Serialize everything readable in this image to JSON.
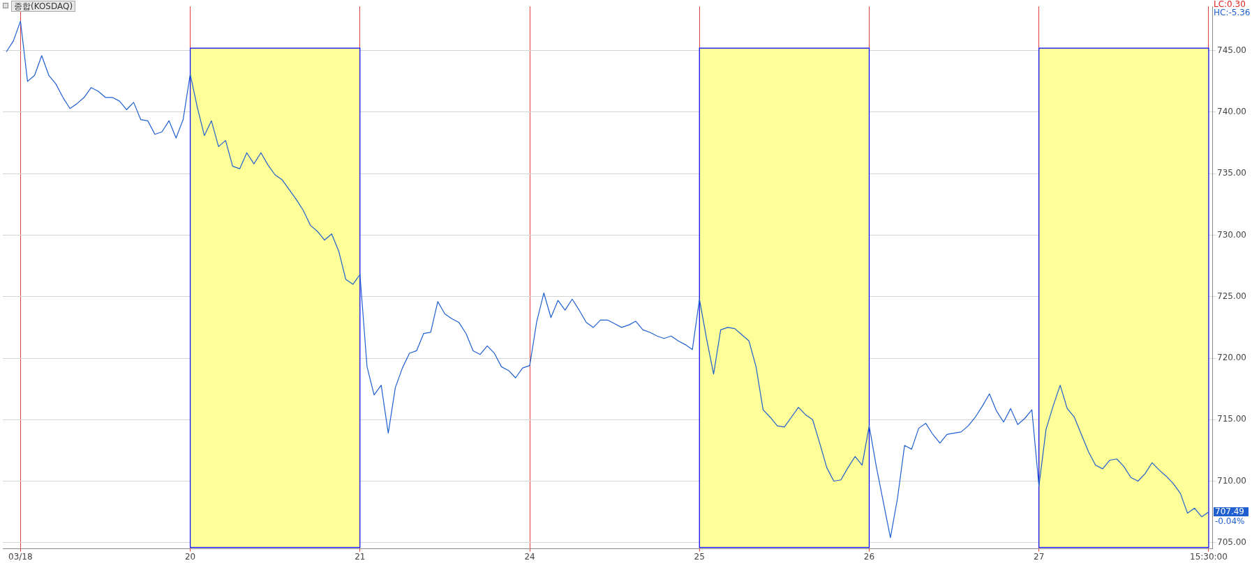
{
  "chart_data": {
    "type": "line",
    "title": "종합(KOSDAQ)",
    "categories": [
      null,
      null,
      "03/18",
      null,
      null,
      null,
      null,
      null,
      null,
      null,
      null,
      null,
      null,
      null,
      null,
      null,
      null,
      null,
      null,
      null,
      null,
      null,
      null,
      null,
      null,
      null,
      "20",
      null,
      null,
      null,
      null,
      null,
      null,
      null,
      null,
      null,
      null,
      null,
      null,
      null,
      null,
      null,
      null,
      null,
      null,
      null,
      null,
      null,
      null,
      null,
      "21",
      null,
      null,
      null,
      null,
      null,
      null,
      null,
      null,
      null,
      null,
      null,
      null,
      null,
      null,
      null,
      null,
      null,
      null,
      null,
      null,
      null,
      null,
      null,
      "24",
      null,
      null,
      null,
      null,
      null,
      null,
      null,
      null,
      null,
      null,
      null,
      null,
      null,
      null,
      null,
      null,
      null,
      null,
      null,
      null,
      null,
      null,
      null,
      "25",
      null,
      null,
      null,
      null,
      null,
      null,
      null,
      null,
      null,
      null,
      null,
      null,
      null,
      null,
      null,
      null,
      null,
      null,
      null,
      null,
      null,
      null,
      null,
      "26",
      null,
      null,
      null,
      null,
      null,
      null,
      null,
      null,
      null,
      null,
      null,
      null,
      null,
      null,
      null,
      null,
      null,
      null,
      null,
      null,
      null,
      null,
      null,
      "27",
      null,
      null,
      null,
      null,
      null,
      null,
      null,
      null,
      null,
      null,
      null,
      null,
      null,
      null,
      null,
      null,
      null,
      null,
      null,
      null,
      null,
      null,
      null,
      "15:30:00"
    ],
    "series": [
      {
        "values": [
          744.9,
          745.8,
          747.4,
          742.5,
          743.0,
          744.6,
          743.0,
          742.3,
          741.2,
          740.3,
          740.7,
          741.2,
          742.0,
          741.7,
          741.2,
          741.2,
          740.9,
          740.2,
          740.8,
          739.4,
          739.3,
          738.2,
          738.4,
          739.3,
          737.9,
          739.4,
          743.1,
          740.4,
          738.1,
          739.3,
          737.2,
          737.7,
          735.6,
          735.4,
          736.7,
          735.8,
          736.7,
          735.7,
          734.9,
          734.5,
          733.7,
          732.9,
          732.0,
          730.8,
          730.3,
          729.6,
          730.1,
          728.7,
          726.4,
          726.0,
          726.8,
          719.3,
          717.0,
          717.8,
          713.9,
          717.6,
          719.2,
          720.4,
          720.6,
          722.0,
          722.1,
          724.6,
          723.6,
          723.2,
          722.9,
          722.0,
          720.6,
          720.3,
          721.0,
          720.4,
          719.3,
          719.0,
          718.4,
          719.2,
          719.4,
          723.0,
          725.3,
          723.3,
          724.7,
          723.9,
          724.8,
          723.9,
          722.9,
          722.5,
          723.1,
          723.1,
          722.8,
          722.5,
          722.7,
          723.0,
          722.3,
          722.1,
          721.8,
          721.6,
          721.8,
          721.4,
          721.1,
          720.7,
          724.8,
          721.6,
          718.7,
          722.3,
          722.5,
          722.4,
          721.9,
          721.4,
          719.3,
          715.8,
          715.2,
          714.5,
          714.4,
          715.2,
          716.0,
          715.4,
          715.0,
          713.1,
          711.1,
          710.0,
          710.1,
          711.1,
          712.0,
          711.3,
          714.5,
          711.2,
          708.3,
          705.4,
          708.6,
          712.9,
          712.6,
          714.3,
          714.7,
          713.8,
          713.1,
          713.8,
          713.9,
          714.0,
          714.5,
          715.2,
          716.1,
          717.1,
          715.7,
          714.8,
          715.9,
          714.6,
          715.1,
          715.8,
          709.6,
          714.2,
          716.1,
          717.8,
          715.9,
          715.2,
          713.8,
          712.4,
          711.3,
          711.0,
          711.7,
          711.8,
          711.2,
          710.3,
          710.0,
          710.6,
          711.5,
          710.9,
          710.4,
          709.8,
          709.0,
          707.4,
          707.8,
          707.1,
          707.49
        ],
        "color": "#1f5fd0"
      }
    ],
    "ylim": [
      704.5,
      748.6
    ],
    "yticks": [
      {
        "value": 705,
        "label": "705.00"
      },
      {
        "value": 710,
        "label": "710.00"
      },
      {
        "value": 715,
        "label": "715.00"
      },
      {
        "value": 720,
        "label": "720.00"
      },
      {
        "value": 725,
        "label": "725.00"
      },
      {
        "value": 730,
        "label": "730.00"
      },
      {
        "value": 735,
        "label": "735.00"
      },
      {
        "value": 740,
        "label": "740.00"
      },
      {
        "value": 745,
        "label": "745.00"
      }
    ],
    "grid": true,
    "legend": false,
    "marker": "none",
    "line_style": "solid",
    "bands": [
      {
        "axis": "x",
        "from": "20",
        "to": "21",
        "color": "#ffff99"
      },
      {
        "axis": "x",
        "from": "25",
        "to": "26",
        "color": "#ffff99"
      },
      {
        "axis": "x",
        "from": "27",
        "to": "15:30:00",
        "color": "#ffff99"
      }
    ],
    "annotations": [
      "LC:0.30",
      "HC:-5.36",
      "707.49",
      "-0.04%"
    ]
  }
}
